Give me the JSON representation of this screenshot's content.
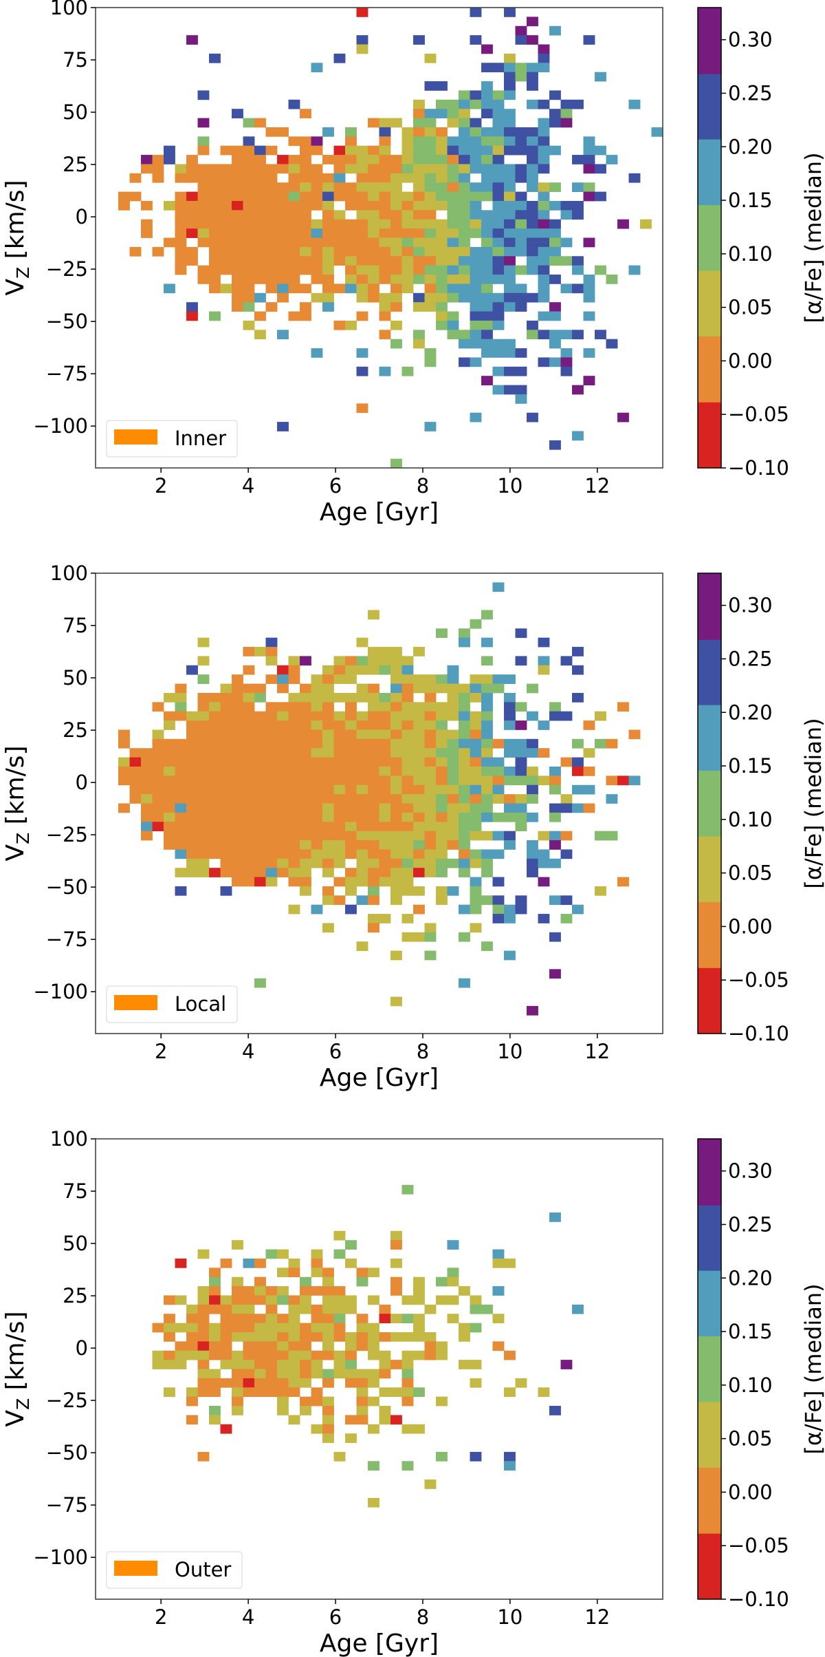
{
  "chart_data": {
    "type": "heatmap",
    "description_of_encoding": "grid rows run from top (highest V_Z bin) to bottom; each character is the colour-bin index of the median [alpha/Fe] in that bin, '.' = empty bin",
    "xlabel": "Age [Gyr]",
    "ylabel": {
      "main": "V",
      "sub": "Z",
      "unit": " [km/s]"
    },
    "colorbar_label": "[α/Fe] (median)",
    "xlim": [
      0.5,
      13.5
    ],
    "ylim": [
      -120,
      100
    ],
    "bins": {
      "nx": 50,
      "ny": 50
    },
    "xticks": [
      2,
      4,
      6,
      8,
      10,
      12
    ],
    "yticks": [
      100,
      75,
      50,
      25,
      0,
      -25,
      -50,
      -75,
      -100
    ],
    "ytick_labels": [
      "100",
      "75",
      "50",
      "25",
      "0",
      "−25",
      "−50",
      "−75",
      "−100"
    ],
    "colorbar": {
      "range": [
        -0.1,
        0.33
      ],
      "boundaries": [
        -0.1,
        -0.0386,
        0.0229,
        0.0843,
        0.1457,
        0.207,
        0.268,
        0.33
      ],
      "colors": [
        "#d92321",
        "#e68a35",
        "#c4b945",
        "#84bb6c",
        "#529dbb",
        "#3e51a2",
        "#771b7e"
      ],
      "ticks": [
        -0.1,
        -0.05,
        0.0,
        0.05,
        0.1,
        0.15,
        0.2,
        0.25,
        0.3
      ],
      "tick_labels": [
        "−0.10",
        "−0.05",
        "0.00",
        "0.05",
        "0.10",
        "0.15",
        "0.20",
        "0.25",
        "0.30"
      ]
    },
    "legend_color": "#ff8c00",
    "legend_position": "lower-left",
    "panels": [
      {
        "legend": "Inner",
        "grid": [
          [
            ".......................0.",
            "........5..5............."
          ],
          [
            "",
            ".............6..........."
          ],
          [
            "",
            "............6..4........."
          ],
          [
            "........6..............5.",
            "...5....5...56....5......"
          ],
          [
            ".......................2.",
            ".........6....6.........."
          ],
          [
            "..........5..........5...",
            "....2......2..5.........."
          ],
          [
            "...................4.....",
            ".........554344.........."
          ],
          [
            "",
            "...........535.....4....."
          ],
          [
            "",
            "....55...4.5.5..........."
          ],
          [
            ".........5...............",
            ".......35434...5........."
          ],
          [
            ".................5.......",
            "...2.334344..45.55....4.."
          ],
          [
            "............5.....1......",
            "...14432.544...53........"
          ],
          [
            ".........6...31.........1",
            "22.33.235.44..456........"
          ],
          [
            "...............11...4.3..",
            "5.2121.43445554.........4"
          ],
          [
            ".........3...5...116..1..",
            "1.2332444334545...4......"
          ],
          [
            "......5..1.11151..11.0221",
            "2.23325444255544..44....."
          ],
          [
            "....615.1...111.011.11122",
            "11233315435..54..55.4...."
          ],
          [
            "....11.2111111111211.1221",
            "113222324444545...65....."
          ],
          [
            "...1.1.111111111.11114.11",
            "12223234.44454........5.."
          ],
          [
            ".........1111111112121122",
            "22.233134454.423.43......"
          ],
          [
            "..11...101111111131151112",
            "1221233333525.4...65....."
          ],
          [
            "..1.1.211111011111112.111",
            "121222334.44453455......."
          ],
          [
            ".......111111111111.12.22",
            "11211.334444554.45......."
          ],
          [
            "....1..111111111111211112",
            "2122223324453565.....6.2."
          ],
          [
            "....1..102111111111411112",
            "1111322334544444........."
          ],
          [
            "......11.1111111111111111",
            "22322243.34545534.6......"
          ],
          [
            "...1.1.11.111111112121111",
            "1213222244344544........."
          ],
          [
            ".......11.111111111121211",
            "112112244456.44335......."
          ],
          [
            ".......1.111111111112.122",
            "112133434454345..4.3..4.."
          ],
          [
            ".........11.111111.11.212",
            "122323224444..45..4.3...."
          ],
          [
            "......4...1211.1411.11421",
            ".12.134443.44.4.454......"
          ],
          [
            "............114.1..22..21",
            "22.522344445554...4......"
          ],
          [
            "........5...13.1..1.4....",
            "21.223..44545..6........."
          ],
          [
            "........0.3...1..11....1.",
            "1....23.555...44..4......"
          ],
          [
            ".............2.......12..",
            ".2...34.334..5..........."
          ],
          [
            "..............2.4........",
            "1..3..3345...35445.5....."
          ],
          [
            "",
            ".3.2...44444...4....5...."
          ],
          [
            "...................4...4.",
            "....3....4445...4.4......"
          ],
          [
            "",
            "....3..54.....546........"
          ],
          [
            ".......................5.",
            "4.3.......455...5........"
          ],
          [
            "",
            ".........6........6......"
          ],
          [
            "",
            "..........455....6......."
          ],
          [
            "",
            "............4............"
          ],
          [
            ".......................1.",
            ""
          ],
          [
            "",
            "........4....5.......6..."
          ],
          [
            "................5........",
            "....4...................."
          ],
          [
            "",
            ".................4......."
          ],
          [
            "",
            "...............5........."
          ],
          [
            "",
            ""
          ],
          [
            "",
            ".3......................."
          ]
        ]
      },
      {
        "legend": "Local",
        "grid": [
          [
            "",
            ""
          ],
          [
            "",
            "..........4.............."
          ],
          [
            "",
            ""
          ],
          [
            "",
            ""
          ],
          [
            "........................2",
            ".........3..............."
          ],
          [
            "",
            "........3................"
          ],
          [
            "",
            ".....3.3....5............"
          ],
          [
            ".........2.....5.......2.",
            ".......4.4....5.........."
          ],
          [
            ".............121........2",
            "22.2.............5......."
          ],
          [
            ".........2.....2.26..2132",
            "222......3..5.4.5........"
          ],
          [
            "........5....1..01..21222",
            "324...4.......2..5......."
          ],
          [
            ".........3..1..141.2122..",
            ".222234.2244............."
          ],
          [
            ".......1...2111.1.122..21",
            ".4122222433..3..........."
          ],
          [
            "......22.111123..22222222",
            "321.1.2324.4.....5......."
          ],
          [
            ".....1.3.12111.111121.1.2",
            "21222223.4.53..3.....1..."
          ],
          [
            "......1122111111211112121",
            "1222122423.5.4.55..2....."
          ],
          [
            "......2.11111111111211211",
            "121223.324.46.4...1......"
          ],
          [
            "..1..2..11111111111121122",
            "2122122314............1.."
          ],
          [
            "..1..11111111111111121111",
            "12221234431445...3.31...."
          ],
          [
            "...1111111111111111221111",
            "1222233242.4441...2......"
          ],
          [
            "..20111111111111111111111",
            "11221232144.5...15......."
          ],
          [
            "..11112111111111111111111",
            "21222132233452.4.01......"
          ],
          [
            "..11111111111111111111111",
            "1212213222133321....104.."
          ],
          [
            "...1111111111111111112121",
            "12112223424..5.3.44......"
          ],
          [
            "...1211111111111111111111",
            "11222313132123..2...4...."
          ],
          [
            "..1.111411111111111121111",
            "2112232233.44..5541......"
          ],
          [
            "....112111111111111121111",
            "21212123343334.3........."
          ],
          [
            "....401111111111111111211",
            "111222233...3............"
          ],
          [
            "....1.1111111111111111122",
            "222212232245..241..33...."
          ],
          [
            "......1111111111112122111",
            "22231213...4.4.6........."
          ],
          [
            ".......411111111111222121",
            "122122.1344..44.5........"
          ],
          [
            "........22.11111212212.22",
            "1132233423...544........."
          ],
          [
            ".......222011114122.2.121",
            "122023.3.3...5..........."
          ],
          [
            "............1102.11..1221",
            "222.....4.5...6......1..."
          ],
          [
            ".......5...5......2.1.2.3",
            ".222.24.3..........2....."
          ],
          [
            "....................21.41",
            ".2...2..335.5..45........"
          ],
          [
            ".................2.4..5..",
            "...1...43.345....4......."
          ],
          [
            "........................2",
            "2.2.......54..5.3........"
          ],
          [
            "....................2...1",
            "....2...2................"
          ],
          [
            "",
            "..223..3.......5........."
          ],
          [
            ".......................2.",
            ".........3..............."
          ],
          [
            "",
            ".2..3......4............."
          ],
          [
            "",
            ""
          ],
          [
            "",
            "...............6........."
          ],
          [
            "..............3..........",
            ".......4................."
          ],
          [
            "",
            ""
          ],
          [
            "",
            ".2......................."
          ],
          [
            "",
            ".............6..........."
          ],
          [
            "",
            ""
          ],
          [
            "",
            ""
          ]
        ]
      },
      {
        "legend": "Outer",
        "grid": [
          [
            "",
            ""
          ],
          [
            "",
            ""
          ],
          [
            "",
            ""
          ],
          [
            "",
            ""
          ],
          [
            "",
            ""
          ],
          [
            "",
            "..3......................"
          ],
          [
            "",
            ""
          ],
          [
            "",
            ""
          ],
          [
            "",
            "...............4........."
          ],
          [
            "",
            ""
          ],
          [
            ".....................2...",
            ".2......................."
          ],
          [
            "............2.........3..",
            ".1....4.................."
          ],
          [
            ".........2.....32..2.3...",
            "..........4.............."
          ],
          [
            ".......0...1.41..2.1..2..",
            ".2........22............."
          ],
          [
            "..........1.....21.21..12",
            "......3.................."
          ],
          [
            "..........3.2.1...3.2..3.",
            ".1.2.32.................."
          ],
          [
            ".........21.11212.1111...",
            ".1.2...2..4.............."
          ],
          [
            "......12.2021112312.222.2",
            "..22.22.2................"
          ],
          [
            "........211122.1.221222..",
            "1...2...33.......4......."
          ],
          [
            "......1.11.1111212.113.1.",
            "0232..2...2.............."
          ],
          [
            ".....12221211122221221.22",
            "...2...23................"
          ],
          [
            "......1.11212222121121212",
            "12222..2................."
          ],
          [
            ".......11011.111211.2.212",
            "....12....1.............."
          ],
          [
            ".....212221121111221121.2",
            "2.2212.....1............."
          ],
          [
            ".....222.1.222112212.23..",
            "212....22.......6........"
          ],
          [
            ".........22.1121221232222",
            "1.3......................"
          ],
          [
            ".........1111011122.1.112",
            "..1.....2...2............"
          ],
          [
            "......2.211.211111.1...2.",
            "2223.......2..2.........."
          ],
          [
            "........1...1...2.112..12",
            "..1..2..................."
          ],
          [
            "..........3.2...2.2.1..2.",
            "2..............5........."
          ],
          [
            "........1.2......2..2.11.",
            "20......................."
          ],
          [
            "...........0.......21...2",
            "..22....................."
          ],
          [
            "....................2.2..",
            ""
          ],
          [
            "",
            ""
          ],
          [
            ".........1...........2...",
            ".....3..5..5............."
          ],
          [
            "........................3",
            "..3........4............."
          ],
          [
            "",
            ""
          ],
          [
            "",
            "....2...................."
          ],
          [
            "",
            ""
          ],
          [
            "........................2",
            ""
          ],
          [
            "",
            ""
          ],
          [
            "",
            ""
          ],
          [
            "",
            ""
          ],
          [
            "",
            ""
          ],
          [
            "",
            ""
          ],
          [
            "",
            ""
          ],
          [
            "",
            ""
          ],
          [
            "",
            ""
          ],
          [
            "",
            ""
          ],
          [
            "",
            ""
          ]
        ]
      }
    ]
  }
}
